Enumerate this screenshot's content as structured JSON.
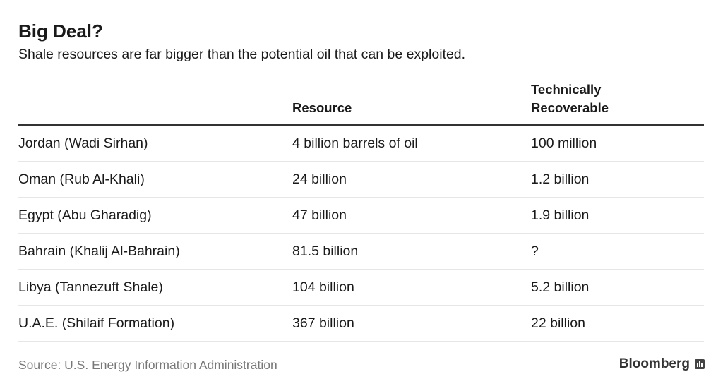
{
  "title": "Big Deal?",
  "subtitle": "Shale resources are far bigger than the potential oil that can be exploited.",
  "chart_data": {
    "type": "table",
    "columns": [
      "",
      "Resource",
      "Technically Recoverable"
    ],
    "header_lines": {
      "technically_recoverable": [
        "Technically",
        "Recoverable"
      ]
    },
    "rows": [
      [
        "Jordan (Wadi Sirhan)",
        "4 billion barrels of oil",
        "100 million"
      ],
      [
        "Oman (Rub Al-Khali)",
        "24 billion",
        "1.2 billion"
      ],
      [
        "Egypt (Abu Gharadig)",
        "47 billion",
        "1.9 billion"
      ],
      [
        "Bahrain (Khalij Al-Bahrain)",
        "81.5 billion",
        "?"
      ],
      [
        "Libya (Tannezuft Shale)",
        "104 billion",
        "5.2 billion"
      ],
      [
        "U.A.E. (Shilaif Formation)",
        "367 billion",
        "22 billion"
      ]
    ]
  },
  "source": "Source: U.S. Energy Information Administration",
  "brand": "Bloomberg"
}
